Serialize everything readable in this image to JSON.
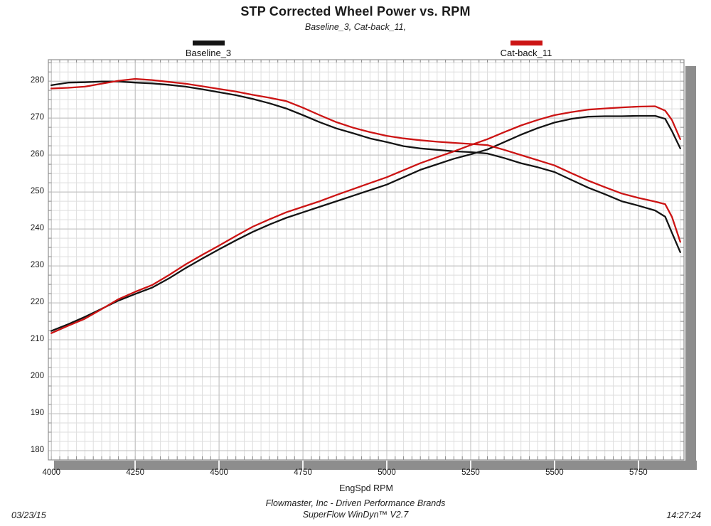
{
  "header": {
    "title": "STP Corrected Wheel Power vs. RPM",
    "subtitle": "Baseline_3, Cat-back_11,"
  },
  "legend": [
    {
      "label": "Baseline_3",
      "color": "#141414"
    },
    {
      "label": "Cat-back_11",
      "color": "#cc1414"
    }
  ],
  "axes": {
    "xlabel": "EngSpd RPM"
  },
  "footer": {
    "company": "Flowmaster, Inc - Driven Performance Brands",
    "software": "SuperFlow WinDyn™ V2.7",
    "date": "03/23/15",
    "time": "14:27:24"
  },
  "chart_data": {
    "type": "line",
    "title": "STP Corrected Wheel Power vs. RPM",
    "subtitle": "Baseline_3, Cat-back_11,",
    "xlabel": "EngSpd RPM",
    "ylabel": "",
    "xlim": [
      3991,
      5886
    ],
    "ylim": [
      177.5,
      285.8
    ],
    "x_ticks": [
      4000,
      4250,
      4500,
      4750,
      5000,
      5250,
      5500,
      5750
    ],
    "y_ticks": [
      180,
      190,
      200,
      210,
      220,
      230,
      240,
      250,
      260,
      270,
      280
    ],
    "x_minor_step": 25,
    "y_minor_step": 2.5,
    "grid": true,
    "legend_position": "top",
    "series": [
      {
        "run": "Baseline_3",
        "curve": "upper",
        "color": "#141414",
        "points": [
          [
            4000,
            278.9
          ],
          [
            4050,
            279.6
          ],
          [
            4100,
            279.7
          ],
          [
            4150,
            279.9
          ],
          [
            4200,
            279.9
          ],
          [
            4250,
            279.6
          ],
          [
            4300,
            279.4
          ],
          [
            4350,
            279.0
          ],
          [
            4400,
            278.5
          ],
          [
            4450,
            277.8
          ],
          [
            4500,
            277.0
          ],
          [
            4550,
            276.2
          ],
          [
            4600,
            275.2
          ],
          [
            4650,
            274.0
          ],
          [
            4700,
            272.6
          ],
          [
            4750,
            270.8
          ],
          [
            4800,
            268.9
          ],
          [
            4850,
            267.2
          ],
          [
            4900,
            265.9
          ],
          [
            4950,
            264.5
          ],
          [
            5000,
            263.5
          ],
          [
            5050,
            262.4
          ],
          [
            5100,
            261.8
          ],
          [
            5150,
            261.4
          ],
          [
            5200,
            261.0
          ],
          [
            5250,
            260.8
          ],
          [
            5300,
            260.4
          ],
          [
            5350,
            259.2
          ],
          [
            5400,
            257.8
          ],
          [
            5450,
            256.7
          ],
          [
            5500,
            255.4
          ],
          [
            5550,
            253.3
          ],
          [
            5600,
            251.2
          ],
          [
            5650,
            249.4
          ],
          [
            5700,
            247.5
          ],
          [
            5750,
            246.3
          ],
          [
            5800,
            245.0
          ],
          [
            5830,
            243.3
          ],
          [
            5850,
            239.0
          ],
          [
            5875,
            233.7
          ]
        ]
      },
      {
        "run": "Baseline_3",
        "curve": "lower",
        "color": "#141414",
        "points": [
          [
            4000,
            212.4
          ],
          [
            4050,
            214.2
          ],
          [
            4100,
            216.2
          ],
          [
            4150,
            218.4
          ],
          [
            4200,
            220.6
          ],
          [
            4250,
            222.4
          ],
          [
            4300,
            224.1
          ],
          [
            4350,
            226.6
          ],
          [
            4400,
            229.4
          ],
          [
            4450,
            232.0
          ],
          [
            4500,
            234.5
          ],
          [
            4550,
            236.9
          ],
          [
            4600,
            239.2
          ],
          [
            4650,
            241.2
          ],
          [
            4700,
            243.0
          ],
          [
            4750,
            244.5
          ],
          [
            4800,
            246.0
          ],
          [
            4850,
            247.5
          ],
          [
            4900,
            249.0
          ],
          [
            4950,
            250.5
          ],
          [
            5000,
            252.0
          ],
          [
            5050,
            254.0
          ],
          [
            5100,
            256.0
          ],
          [
            5150,
            257.5
          ],
          [
            5200,
            259.0
          ],
          [
            5250,
            260.2
          ],
          [
            5300,
            261.5
          ],
          [
            5350,
            263.5
          ],
          [
            5400,
            265.5
          ],
          [
            5450,
            267.3
          ],
          [
            5500,
            268.8
          ],
          [
            5550,
            269.8
          ],
          [
            5600,
            270.4
          ],
          [
            5650,
            270.5
          ],
          [
            5700,
            270.5
          ],
          [
            5750,
            270.6
          ],
          [
            5800,
            270.6
          ],
          [
            5830,
            269.8
          ],
          [
            5850,
            266.5
          ],
          [
            5875,
            261.8
          ]
        ]
      },
      {
        "run": "Cat-back_11",
        "curve": "upper",
        "color": "#cc1414",
        "points": [
          [
            4000,
            278.0
          ],
          [
            4050,
            278.2
          ],
          [
            4100,
            278.5
          ],
          [
            4150,
            279.3
          ],
          [
            4200,
            280.1
          ],
          [
            4250,
            280.6
          ],
          [
            4300,
            280.3
          ],
          [
            4350,
            279.8
          ],
          [
            4400,
            279.3
          ],
          [
            4450,
            278.6
          ],
          [
            4500,
            277.9
          ],
          [
            4550,
            277.2
          ],
          [
            4600,
            276.3
          ],
          [
            4650,
            275.5
          ],
          [
            4700,
            274.6
          ],
          [
            4750,
            272.8
          ],
          [
            4800,
            270.8
          ],
          [
            4850,
            268.9
          ],
          [
            4900,
            267.4
          ],
          [
            4950,
            266.2
          ],
          [
            5000,
            265.2
          ],
          [
            5050,
            264.5
          ],
          [
            5100,
            264.0
          ],
          [
            5150,
            263.6
          ],
          [
            5200,
            263.3
          ],
          [
            5250,
            263.0
          ],
          [
            5300,
            262.7
          ],
          [
            5350,
            261.4
          ],
          [
            5400,
            260.0
          ],
          [
            5450,
            258.6
          ],
          [
            5500,
            257.2
          ],
          [
            5550,
            255.1
          ],
          [
            5600,
            253.1
          ],
          [
            5650,
            251.3
          ],
          [
            5700,
            249.6
          ],
          [
            5750,
            248.4
          ],
          [
            5800,
            247.4
          ],
          [
            5830,
            246.7
          ],
          [
            5850,
            243.3
          ],
          [
            5875,
            236.5
          ]
        ]
      },
      {
        "run": "Cat-back_11",
        "curve": "lower",
        "color": "#cc1414",
        "points": [
          [
            4000,
            211.8
          ],
          [
            4050,
            213.8
          ],
          [
            4100,
            215.7
          ],
          [
            4150,
            218.3
          ],
          [
            4200,
            221.0
          ],
          [
            4250,
            223.0
          ],
          [
            4300,
            224.8
          ],
          [
            4350,
            227.5
          ],
          [
            4400,
            230.4
          ],
          [
            4450,
            233.0
          ],
          [
            4500,
            235.5
          ],
          [
            4550,
            238.1
          ],
          [
            4600,
            240.6
          ],
          [
            4650,
            242.6
          ],
          [
            4700,
            244.5
          ],
          [
            4750,
            246.0
          ],
          [
            4800,
            247.5
          ],
          [
            4850,
            249.2
          ],
          [
            4900,
            250.8
          ],
          [
            4950,
            252.4
          ],
          [
            5000,
            254.0
          ],
          [
            5050,
            255.9
          ],
          [
            5100,
            257.8
          ],
          [
            5150,
            259.4
          ],
          [
            5200,
            261.0
          ],
          [
            5250,
            262.7
          ],
          [
            5300,
            264.3
          ],
          [
            5350,
            266.2
          ],
          [
            5400,
            268.0
          ],
          [
            5450,
            269.5
          ],
          [
            5500,
            270.8
          ],
          [
            5550,
            271.6
          ],
          [
            5600,
            272.3
          ],
          [
            5650,
            272.6
          ],
          [
            5700,
            272.9
          ],
          [
            5750,
            273.1
          ],
          [
            5800,
            273.2
          ],
          [
            5830,
            272.0
          ],
          [
            5850,
            269.5
          ],
          [
            5875,
            264.3
          ]
        ]
      }
    ]
  }
}
